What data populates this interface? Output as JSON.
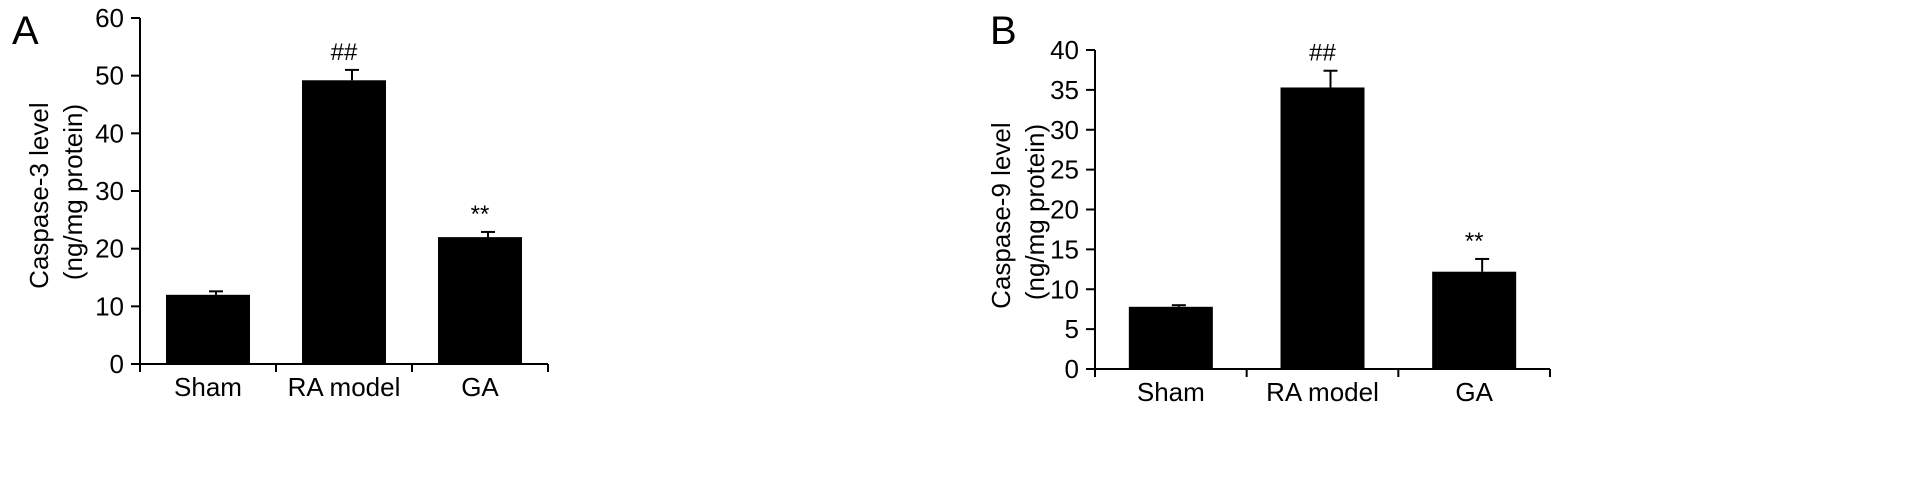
{
  "chart_data": [
    {
      "panel": "A",
      "type": "bar",
      "categories": [
        "Sham",
        "RA model",
        "GA"
      ],
      "values": [
        12,
        49.2,
        22
      ],
      "errors": [
        0.6,
        1.8,
        0.9
      ],
      "annotations": [
        "",
        "##",
        "**"
      ],
      "ylabel_lines": [
        "Caspase-3 level",
        "(ng/mg protein)"
      ],
      "ylim": [
        0,
        60
      ],
      "yticks": [
        "0",
        "10",
        "20",
        "30",
        "40",
        "50",
        "60"
      ],
      "grid": false,
      "colors": {
        "bar": "#000000"
      }
    },
    {
      "panel": "B",
      "type": "bar",
      "categories": [
        "Sham",
        "RA model",
        "GA"
      ],
      "values": [
        7.8,
        35.3,
        12.2
      ],
      "errors": [
        0.2,
        2.1,
        1.6
      ],
      "annotations": [
        "",
        "##",
        "**"
      ],
      "ylabel_lines": [
        "Caspase-9 level",
        "(ng/mg protein)"
      ],
      "ylim": [
        0,
        40
      ],
      "yticks": [
        "0",
        "5",
        "10",
        "15",
        "20",
        "25",
        "30",
        "35",
        "40"
      ],
      "grid": false,
      "colors": {
        "bar": "#000000"
      }
    }
  ]
}
